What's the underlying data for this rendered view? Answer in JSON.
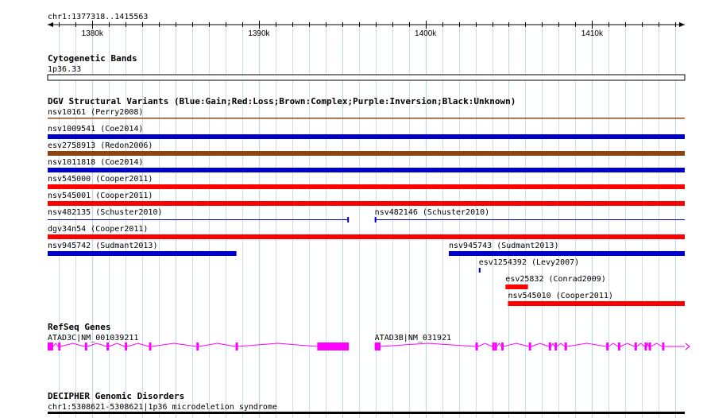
{
  "browser": {
    "location": "chr1:1377318..1415563",
    "view_start": 1377318,
    "view_end": 1415563,
    "major_ticks": [
      1380000,
      1390000,
      1400000,
      1410000
    ],
    "tick_labels": [
      "1380k",
      "1390k",
      "1400k",
      "1410k"
    ]
  },
  "colors": {
    "gain": "#0000cc",
    "loss": "#ff0000",
    "complex": "#8b4513",
    "gene": "#ff00ff",
    "grid": "#b8d8ec"
  },
  "tracks": {
    "cytoband": {
      "title": "Cytogenetic Bands",
      "band_label": "1p36.33"
    },
    "dgv": {
      "title": "DGV Structural Variants (Blue:Gain;Red:Loss;Brown:Complex;Purple:Inversion;Black:Unknown)",
      "features": [
        {
          "label": "nsv10161 (Perry2008)",
          "type": "complex",
          "style": "thin",
          "start": 1377318,
          "end": 1415563
        },
        {
          "label": "nsv1009541 (Coe2014)",
          "type": "gain",
          "style": "bar",
          "start": 1377318,
          "end": 1415563
        },
        {
          "label": "esv2758913 (Redon2006)",
          "type": "complex",
          "style": "bar",
          "start": 1377318,
          "end": 1415563
        },
        {
          "label": "nsv1011818 (Coe2014)",
          "type": "gain",
          "style": "bar",
          "start": 1377318,
          "end": 1415563
        },
        {
          "label": "nsv545000 (Cooper2011)",
          "type": "loss",
          "style": "bar",
          "start": 1377318,
          "end": 1415563
        },
        {
          "label": "nsv545001 (Cooper2011)",
          "type": "loss",
          "style": "bar",
          "start": 1377318,
          "end": 1415563
        },
        {
          "label": "nsv482135 (Schuster2010)",
          "type": "gain",
          "style": "line",
          "start": 1377318,
          "end": 1395400
        },
        {
          "label": "nsv482146 (Schuster2010)",
          "type": "gain",
          "style": "line",
          "start": 1396950,
          "end": 1415563
        },
        {
          "label": "dgv34n54 (Cooper2011)",
          "type": "loss",
          "style": "bar",
          "start": 1377318,
          "end": 1415563
        },
        {
          "label": "nsv945742 (Sudmant2013)",
          "type": "gain",
          "style": "bar",
          "start": 1377318,
          "end": 1388650
        },
        {
          "label": "nsv945743 (Sudmant2013)",
          "type": "gain",
          "style": "bar",
          "start": 1401400,
          "end": 1415563
        },
        {
          "label": "esv1254392 (Levy2007)",
          "type": "gain",
          "style": "bar",
          "start": 1403200,
          "end": 1403300
        },
        {
          "label": "esv25832 (Conrad2009)",
          "type": "loss",
          "style": "bar",
          "start": 1404800,
          "end": 1406150
        },
        {
          "label": "nsv545010 (Cooper2011)",
          "type": "loss",
          "style": "bar",
          "start": 1404950,
          "end": 1415563
        }
      ]
    },
    "refseq": {
      "title": "RefSeq Genes",
      "genes": [
        {
          "label": "ATAD3C|NM_001039211",
          "start": 1377318,
          "end": 1395400,
          "exons": [
            [
              1377318,
              1377650
            ],
            [
              1377950,
              1378050
            ],
            [
              1379550,
              1379650
            ],
            [
              1380850,
              1380950
            ],
            [
              1381950,
              1382050
            ],
            [
              1383400,
              1383500
            ],
            [
              1386250,
              1386350
            ],
            [
              1388600,
              1388700
            ],
            [
              1393500,
              1395400
            ]
          ]
        },
        {
          "label": "ATAD3B|NM_031921",
          "start": 1396950,
          "end": 1415563,
          "exons": [
            [
              1396950,
              1397300
            ],
            [
              1403000,
              1403100
            ],
            [
              1404000,
              1404100
            ],
            [
              1404150,
              1404250
            ],
            [
              1404550,
              1404650
            ],
            [
              1406200,
              1406300
            ],
            [
              1407400,
              1407500
            ],
            [
              1407750,
              1407850
            ],
            [
              1408350,
              1408450
            ],
            [
              1410850,
              1410950
            ],
            [
              1411550,
              1411650
            ],
            [
              1412550,
              1412650
            ],
            [
              1413150,
              1413250
            ],
            [
              1413400,
              1413500
            ],
            [
              1414200,
              1414300
            ]
          ]
        }
      ]
    },
    "decipher": {
      "title": "DECIPHER Genomic Disorders",
      "feature_label": "chr1:5308621-5308621|1p36 microdeletion syndrome"
    }
  }
}
